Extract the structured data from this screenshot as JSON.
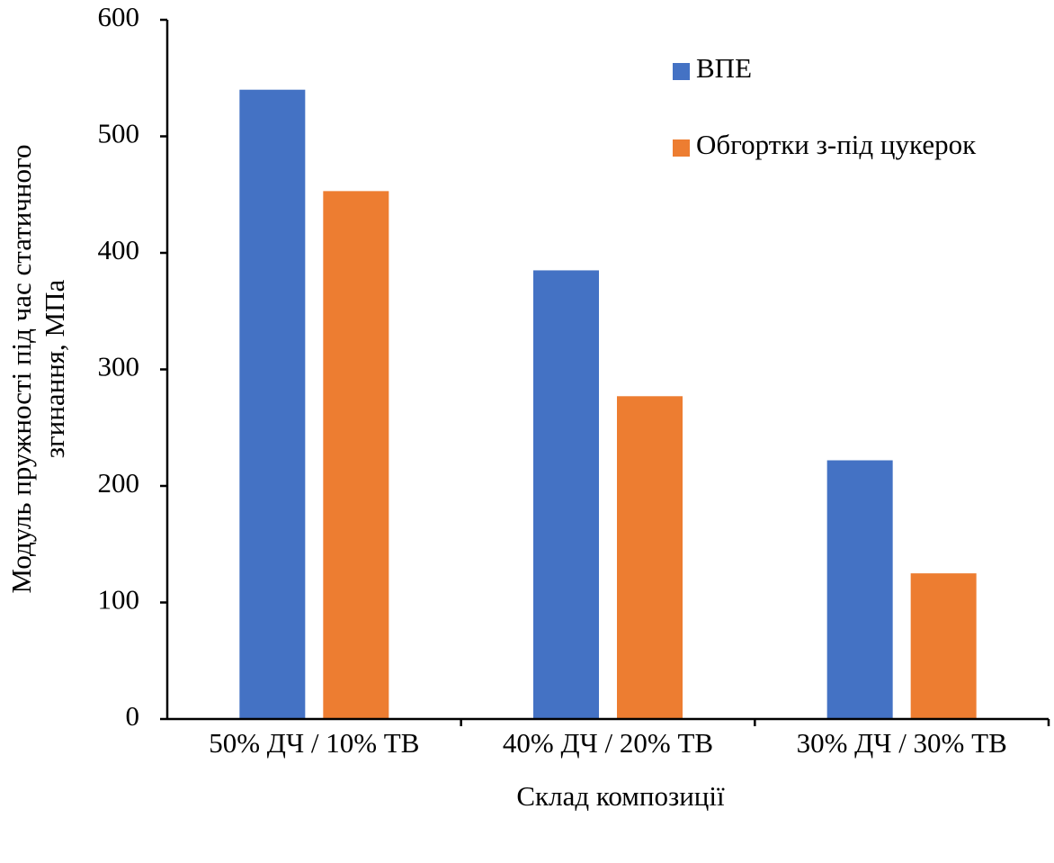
{
  "chart_data": {
    "type": "bar",
    "xlabel": "Склад композиції",
    "ylabel": [
      "Модуль пружності під час статичного",
      "згинання, МПа"
    ],
    "categories": [
      "50% ДЧ / 10% ТВ",
      "40% ДЧ / 20% ТВ",
      "30% ДЧ / 30% ТВ"
    ],
    "series": [
      {
        "name": "ВПЕ",
        "color": "#4472c4",
        "values": [
          540,
          385,
          222
        ]
      },
      {
        "name": "Обгортки з-під цукерок",
        "color": "#ed7d31",
        "values": [
          453,
          277,
          125
        ]
      }
    ],
    "ylim": [
      0,
      600
    ],
    "yticks": [
      0,
      100,
      200,
      300,
      400,
      500,
      600
    ],
    "grid": false,
    "legend": "upper right"
  }
}
